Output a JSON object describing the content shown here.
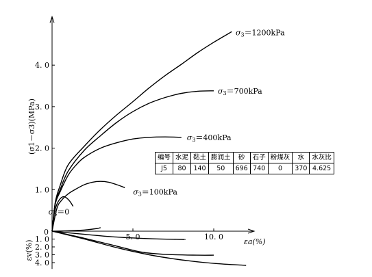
{
  "chart_data": {
    "type": "line",
    "ylabel": "(σ1－σ3)(MPa)",
    "xlabel": "εa(%)",
    "lower_ylabel": "εv(%)",
    "xlim": [
      0,
      12.5
    ],
    "ylim": [
      0,
      5.2
    ],
    "lower_ylim": [
      0,
      4.8
    ],
    "x_ticks": [
      5.0,
      10.0
    ],
    "x_tick_labels": [
      "5. 0",
      "10. 0"
    ],
    "y_ticks": [
      1.0,
      2.0,
      3.0,
      4.0
    ],
    "y_tick_labels": [
      "1. 0",
      "2. 0",
      "3. 0",
      "4. 0"
    ],
    "lower_y_ticks": [
      1.0,
      2.0,
      3.0,
      4.0
    ],
    "lower_y_tick_labels": [
      "1. 0",
      "2. 0",
      "3. 0",
      "4. 0"
    ],
    "zero_label": "0",
    "grid": false,
    "series": [
      {
        "name": "σ3＝0",
        "x": [
          0,
          0.15,
          0.3,
          0.5,
          0.7,
          0.9,
          1.1,
          1.3
        ],
        "y": [
          0,
          0.45,
          0.65,
          0.78,
          0.83,
          0.8,
          0.72,
          0.6
        ]
      },
      {
        "name": "σ3＝100kPa",
        "x": [
          0,
          0.3,
          0.6,
          1.0,
          1.5,
          2.0,
          2.5,
          3.0,
          3.5,
          4.0,
          4.5
        ],
        "y": [
          0,
          0.55,
          0.75,
          0.9,
          1.02,
          1.12,
          1.18,
          1.2,
          1.18,
          1.12,
          1.05
        ]
      },
      {
        "name": "σ3＝400kPa",
        "x": [
          0,
          0.2,
          0.5,
          1.0,
          1.5,
          2.0,
          3.0,
          4.0,
          5.0,
          6.0,
          7.0,
          8.0
        ],
        "y": [
          0,
          0.65,
          0.95,
          1.35,
          1.6,
          1.78,
          2.0,
          2.13,
          2.22,
          2.26,
          2.27,
          2.26
        ]
      },
      {
        "name": "σ3＝700kPa",
        "x": [
          0,
          0.2,
          0.5,
          1.0,
          2.0,
          3.0,
          4.0,
          5.0,
          6.0,
          7.0,
          8.0,
          9.0,
          10.0
        ],
        "y": [
          0,
          0.68,
          1.0,
          1.45,
          1.95,
          2.3,
          2.62,
          2.88,
          3.08,
          3.22,
          3.32,
          3.37,
          3.38
        ]
      },
      {
        "name": "σ3＝1200kPa",
        "x": [
          0,
          0.2,
          0.5,
          1.0,
          2.0,
          3.0,
          4.0,
          5.0,
          6.0,
          7.0,
          8.0,
          9.0,
          10.0,
          11.0,
          11.1
        ],
        "y": [
          0,
          0.7,
          1.1,
          1.6,
          2.05,
          2.45,
          2.8,
          3.12,
          3.45,
          3.75,
          4.02,
          4.3,
          4.55,
          4.78,
          4.8
        ]
      }
    ],
    "volumetric_series": [
      {
        "x": [
          0,
          1.0,
          2.0,
          2.8,
          3.0
        ],
        "y": [
          0,
          -0.05,
          -0.15,
          -0.35,
          -0.45
        ]
      },
      {
        "x": [
          0,
          2.0,
          4.0,
          6.0,
          8.0,
          8.2
        ],
        "y": [
          0,
          0.4,
          0.75,
          0.95,
          1.05,
          1.05
        ]
      },
      {
        "x": [
          0,
          2.0,
          4.0,
          5.5,
          7.0,
          9.0,
          10.0
        ],
        "y": [
          0,
          0.9,
          1.9,
          2.65,
          2.95,
          3.05,
          3.05
        ]
      },
      {
        "x": [
          0,
          2.0,
          4.0,
          6.0,
          8.0,
          10.0,
          12.0
        ],
        "y": [
          0,
          1.0,
          2.1,
          3.0,
          3.65,
          4.1,
          4.35
        ]
      }
    ],
    "table": {
      "headers": [
        "编号",
        "水泥",
        "黏土",
        "膨润土",
        "砂",
        "石子",
        "粉煤灰",
        "水",
        "水灰比"
      ],
      "rows": [
        [
          "J5",
          "80",
          "140",
          "50",
          "696",
          "740",
          "0",
          "370",
          "4.625"
        ]
      ]
    }
  }
}
